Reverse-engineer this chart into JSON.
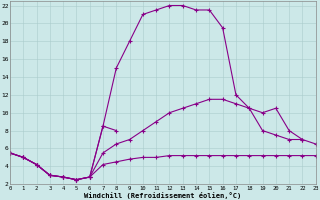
{
  "xlabel": "Windchill (Refroidissement éolien,°C)",
  "xlim": [
    0,
    23
  ],
  "ylim": [
    2,
    22.5
  ],
  "yticks": [
    2,
    4,
    6,
    8,
    10,
    12,
    14,
    16,
    18,
    20,
    22
  ],
  "xticks": [
    0,
    1,
    2,
    3,
    4,
    5,
    6,
    7,
    8,
    9,
    10,
    11,
    12,
    13,
    14,
    15,
    16,
    17,
    18,
    19,
    20,
    21,
    22,
    23
  ],
  "background_color": "#cce8e8",
  "grid_color": "#aacccc",
  "line_color": "#880088",
  "line_top_x": [
    0,
    1,
    2,
    3,
    4,
    5,
    6,
    7,
    8,
    9,
    10,
    11,
    12,
    13,
    14,
    15,
    16,
    17,
    18,
    19,
    20,
    21,
    22
  ],
  "line_top_y": [
    5.5,
    5.0,
    4.2,
    3.0,
    2.8,
    2.5,
    2.8,
    8.5,
    15.0,
    18.0,
    21.0,
    21.5,
    22.0,
    22.0,
    21.5,
    21.5,
    19.5,
    12.0,
    10.5,
    8.0,
    7.5,
    7.0,
    7.0
  ],
  "line_mid_x": [
    0,
    1,
    2,
    3,
    4,
    5,
    6,
    7,
    8,
    9,
    10,
    11,
    12,
    13,
    14,
    15,
    16,
    17,
    18,
    19,
    20,
    21,
    22,
    23
  ],
  "line_mid_y": [
    5.5,
    5.0,
    4.2,
    3.0,
    2.8,
    2.5,
    2.8,
    5.5,
    6.5,
    7.0,
    8.0,
    9.0,
    10.0,
    10.5,
    11.0,
    11.5,
    11.5,
    11.0,
    10.5,
    10.0,
    10.5,
    8.0,
    7.0,
    6.5
  ],
  "line_dip_x": [
    0,
    1,
    2,
    3,
    4,
    5,
    6,
    7,
    8
  ],
  "line_dip_y": [
    5.5,
    5.0,
    4.2,
    3.0,
    2.8,
    2.5,
    2.8,
    8.5,
    8.0
  ],
  "line_bot_x": [
    0,
    1,
    2,
    3,
    4,
    5,
    6,
    7,
    8,
    9,
    10,
    11,
    12,
    13,
    14,
    15,
    16,
    17,
    18,
    19,
    20,
    21,
    22,
    23
  ],
  "line_bot_y": [
    5.5,
    5.0,
    4.2,
    3.0,
    2.8,
    2.5,
    2.8,
    4.2,
    4.5,
    4.8,
    5.0,
    5.0,
    5.2,
    5.2,
    5.2,
    5.2,
    5.2,
    5.2,
    5.2,
    5.2,
    5.2,
    5.2,
    5.2,
    5.2
  ]
}
